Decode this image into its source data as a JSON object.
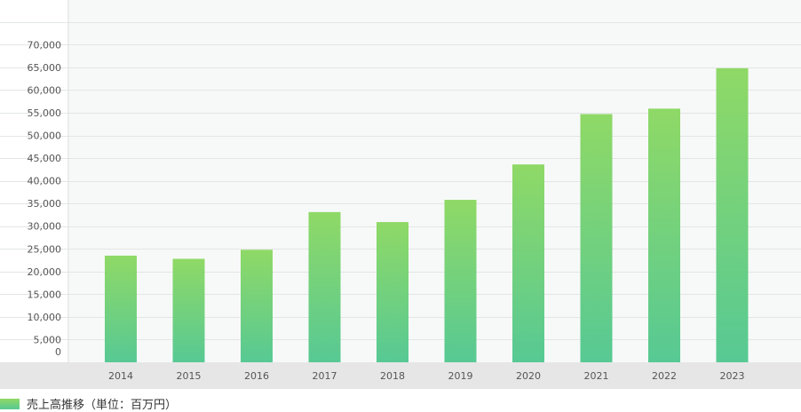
{
  "chart_data": {
    "type": "bar",
    "categories": [
      "2014",
      "2015",
      "2016",
      "2017",
      "2018",
      "2019",
      "2020",
      "2021",
      "2022",
      "2023"
    ],
    "series": [
      {
        "name": "売上高推移（単位：百万円）",
        "values": [
          23500,
          22800,
          24800,
          33100,
          30900,
          35800,
          43600,
          54700,
          55900,
          64800
        ]
      }
    ],
    "ylim": [
      0,
      75000
    ],
    "yticks": [
      0,
      5000,
      10000,
      15000,
      20000,
      25000,
      30000,
      35000,
      40000,
      45000,
      50000,
      55000,
      60000,
      65000,
      70000
    ],
    "ytick_labels": [
      "0",
      "5,000",
      "10,000",
      "15,000",
      "20,000",
      "25,000",
      "30,000",
      "35,000",
      "40,000",
      "45,000",
      "50,000",
      "55,000",
      "60,000",
      "65,000",
      "70,000"
    ],
    "grid": true,
    "legend_position": "bottom-left",
    "colors": {
      "bar_top": "#8fd966",
      "bar_bottom": "#57c994",
      "grid": "#e3e6e5",
      "plot_bg": "#f7f9f8",
      "axis_band": "#e6e6e6"
    }
  }
}
